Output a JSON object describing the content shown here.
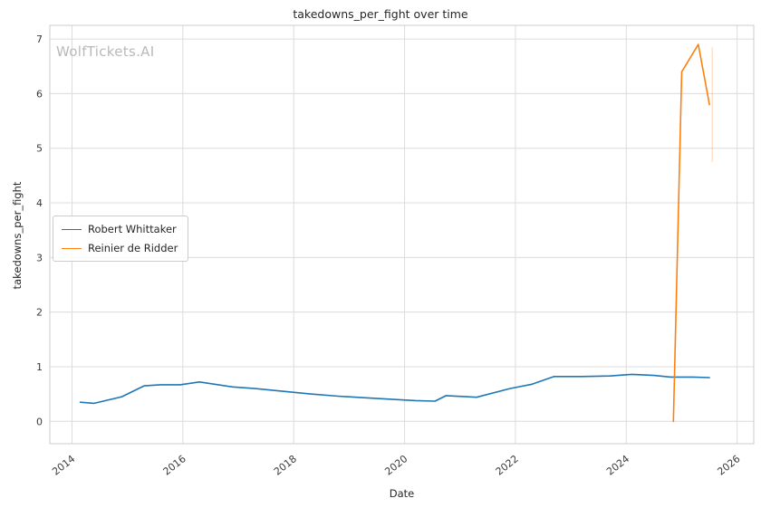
{
  "title": "takedowns_per_fight over time",
  "watermark": "WolfTickets.AI",
  "axes": {
    "xlabel": "Date",
    "ylabel": "takedowns_per_fight"
  },
  "chart_data": {
    "type": "line",
    "title": "takedowns_per_fight over time",
    "xlabel": "Date",
    "ylabel": "takedowns_per_fight",
    "xlim": [
      2013.6,
      2026.3
    ],
    "ylim": [
      -0.41,
      7.25
    ],
    "x_ticks": [
      2014,
      2016,
      2018,
      2020,
      2022,
      2024,
      2026
    ],
    "y_ticks": [
      0,
      1,
      2,
      3,
      4,
      5,
      6,
      7
    ],
    "grid": true,
    "grid_color": "#dcdcdc",
    "spine_color": "#cccccc",
    "tick_label_color": "#3b3b3b",
    "legend_position": "center-left",
    "series": [
      {
        "name": "Robert Whittaker",
        "color": "#1f77b4",
        "x": [
          2014.15,
          2014.4,
          2014.9,
          2015.3,
          2015.6,
          2015.95,
          2016.3,
          2016.9,
          2017.3,
          2017.8,
          2018.3,
          2018.8,
          2019.3,
          2019.8,
          2020.2,
          2020.55,
          2020.75,
          2021.3,
          2021.9,
          2022.3,
          2022.7,
          2023.2,
          2023.7,
          2024.1,
          2024.5,
          2024.8,
          2025.2,
          2025.5
        ],
        "y": [
          0.35,
          0.33,
          0.45,
          0.65,
          0.67,
          0.67,
          0.72,
          0.63,
          0.6,
          0.55,
          0.5,
          0.46,
          0.43,
          0.4,
          0.38,
          0.37,
          0.47,
          0.44,
          0.6,
          0.68,
          0.82,
          0.82,
          0.83,
          0.86,
          0.84,
          0.81,
          0.81,
          0.8
        ]
      },
      {
        "name": "Reinier de Ridder",
        "color": "#ff7f0e",
        "x": [
          2024.85,
          2025.0,
          2025.3,
          2025.5
        ],
        "y": [
          0.0,
          6.4,
          6.9,
          5.8
        ]
      }
    ],
    "extra_segment": {
      "note": "faint vertical orange segment at right edge",
      "color": "#ff7f0e",
      "opacity": 0.35,
      "x": 2025.55,
      "y0": 4.75,
      "y1": 6.85
    }
  }
}
